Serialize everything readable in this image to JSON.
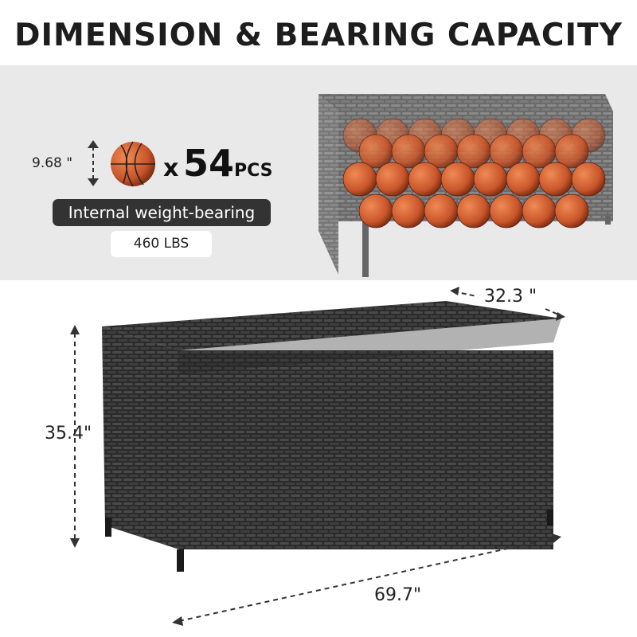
{
  "title": "DIMENSION & BEARING CAPACITY",
  "ball": {
    "diameter": "9.68 \"",
    "multiplier": "x",
    "count": "54",
    "unit": "PCS"
  },
  "weight": {
    "label": "Internal weight-bearing",
    "value": "460 LBS"
  },
  "dimensions": {
    "depth": "32.3 \"",
    "height": "35.4\"",
    "width": "69.7\""
  },
  "colors": {
    "band": "#e9e9e9",
    "wicker": "#2e2e2e",
    "ball": "#c8552a",
    "pill": "#333333"
  }
}
